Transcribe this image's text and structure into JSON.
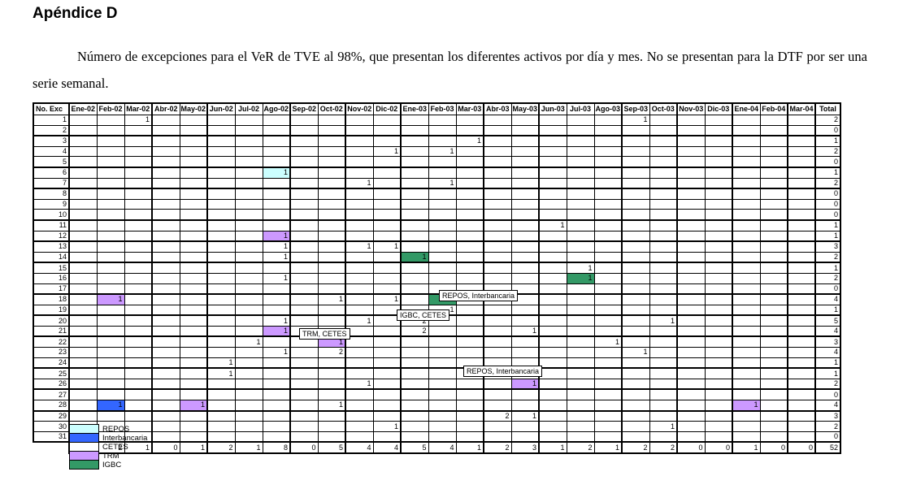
{
  "page": {
    "title": "Apéndice D",
    "paragraph": "Número de excepciones para el VeR de TVE al 98%, que presentan los diferentes activos por día y mes. No se presentan para la DTF por ser una serie semanal."
  },
  "legend": {
    "items": [
      {
        "label": "REPOS",
        "color": "#CCFFFF"
      },
      {
        "label": "Interbancaria",
        "color": "#3366FF"
      },
      {
        "label": "CETES",
        "color": "#FFFFFF"
      },
      {
        "label": "TRM",
        "color": "#CC99FF"
      },
      {
        "label": "IGBC",
        "color": "#339966"
      }
    ]
  },
  "chart_data": {
    "type": "table",
    "row_header_label": "No. Exc",
    "total_label": "Total",
    "columns": [
      "Ene-02",
      "Feb-02",
      "Mar-02",
      "Abr-02",
      "May-02",
      "Jun-02",
      "Jul-02",
      "Ago-02",
      "Sep-02",
      "Oct-02",
      "Nov-02",
      "Dic-02",
      "Ene-03",
      "Feb-03",
      "Mar-03",
      "Abr-03",
      "May-03",
      "Jun-03",
      "Jul-03",
      "Ago-03",
      "Sep-03",
      "Oct-03",
      "Nov-03",
      "Dic-03",
      "Ene-04",
      "Feb-04",
      "Mar-04"
    ],
    "rows": [
      {
        "label": "1",
        "cells": {
          "Mar-02": {
            "v": "1"
          },
          "Sep-03": {
            "v": "1"
          }
        },
        "total": "2"
      },
      {
        "label": "2",
        "cells": {},
        "total": "0"
      },
      {
        "label": "3",
        "cells": {
          "Mar-03": {
            "v": "1"
          }
        },
        "total": "1"
      },
      {
        "label": "4",
        "cells": {
          "Dic-02": {
            "v": "1"
          },
          "Feb-03": {
            "v": "1"
          }
        },
        "total": "2"
      },
      {
        "label": "5",
        "cells": {},
        "total": "0"
      },
      {
        "label": "6",
        "cells": {
          "Ago-02": {
            "v": "1",
            "asset": "REPOS"
          }
        },
        "total": "1"
      },
      {
        "label": "7",
        "cells": {
          "Nov-02": {
            "v": "1"
          },
          "Feb-03": {
            "v": "1"
          }
        },
        "total": "2"
      },
      {
        "label": "8",
        "cells": {},
        "total": "0"
      },
      {
        "label": "9",
        "cells": {},
        "total": "0"
      },
      {
        "label": "10",
        "cells": {},
        "total": "0"
      },
      {
        "label": "11",
        "cells": {
          "Jun-03": {
            "v": "1"
          }
        },
        "total": "1"
      },
      {
        "label": "12",
        "cells": {
          "Ago-02": {
            "v": "1",
            "asset": "TRM"
          }
        },
        "total": "1"
      },
      {
        "label": "13",
        "cells": {
          "Ago-02": {
            "v": "1"
          },
          "Nov-02": {
            "v": "1"
          },
          "Dic-02": {
            "v": "1"
          }
        },
        "total": "3"
      },
      {
        "label": "14",
        "cells": {
          "Ago-02": {
            "v": "1"
          },
          "Ene-03": {
            "v": "1",
            "asset": "IGBC"
          }
        },
        "total": "2"
      },
      {
        "label": "15",
        "cells": {
          "Jul-03": {
            "v": "1"
          }
        },
        "total": "1"
      },
      {
        "label": "16",
        "cells": {
          "Ago-02": {
            "v": "1"
          },
          "Jul-03": {
            "v": "1",
            "asset": "IGBC"
          }
        },
        "total": "2"
      },
      {
        "label": "17",
        "cells": {},
        "total": "0"
      },
      {
        "label": "18",
        "cells": {
          "Feb-02": {
            "v": "1",
            "asset": "TRM"
          },
          "Oct-02": {
            "v": "1"
          },
          "Dic-02": {
            "v": "1"
          },
          "Feb-03": {
            "v": "1",
            "asset": "IGBC"
          }
        },
        "total": "4"
      },
      {
        "label": "19",
        "cells": {
          "Feb-03": {
            "v": "1"
          }
        },
        "total": "1"
      },
      {
        "label": "20",
        "cells": {
          "Ago-02": {
            "v": "1"
          },
          "Nov-02": {
            "v": "1"
          },
          "Ene-03": {
            "v": "2"
          },
          "Oct-03": {
            "v": "1"
          }
        },
        "total": "5"
      },
      {
        "label": "21",
        "cells": {
          "Ago-02": {
            "v": "1",
            "asset": "TRM"
          },
          "Ene-03": {
            "v": "2"
          },
          "May-03": {
            "v": "1"
          }
        },
        "total": "4"
      },
      {
        "label": "22",
        "cells": {
          "Jul-02": {
            "v": "1"
          },
          "Oct-02": {
            "v": "1",
            "asset": "TRM"
          },
          "Ago-03": {
            "v": "1"
          }
        },
        "total": "3"
      },
      {
        "label": "23",
        "cells": {
          "Ago-02": {
            "v": "1"
          },
          "Oct-02": {
            "v": "2"
          },
          "Sep-03": {
            "v": "1"
          }
        },
        "total": "4"
      },
      {
        "label": "24",
        "cells": {
          "Jun-02": {
            "v": "1"
          }
        },
        "total": "1"
      },
      {
        "label": "25",
        "cells": {
          "Jun-02": {
            "v": "1"
          }
        },
        "total": "1"
      },
      {
        "label": "26",
        "cells": {
          "Nov-02": {
            "v": "1"
          },
          "May-03": {
            "v": "1",
            "asset": "TRM"
          }
        },
        "total": "2"
      },
      {
        "label": "27",
        "cells": {},
        "total": "0"
      },
      {
        "label": "28",
        "cells": {
          "Feb-02": {
            "v": "1",
            "asset": "Interbancaria"
          },
          "May-02": {
            "v": "1",
            "asset": "TRM"
          },
          "Oct-02": {
            "v": "1"
          },
          "Ene-04": {
            "v": "1",
            "asset": "TRM"
          }
        },
        "total": "4"
      },
      {
        "label": "29",
        "cells": {
          "Abr-03": {
            "v": "2"
          },
          "May-03": {
            "v": "1"
          }
        },
        "total": "3"
      },
      {
        "label": "30",
        "cells": {
          "Dic-02": {
            "v": "1"
          },
          "Oct-03": {
            "v": "1"
          }
        },
        "total": "2"
      },
      {
        "label": "31",
        "cells": {},
        "total": "0"
      }
    ],
    "column_totals": [
      "0",
      "2",
      "1",
      "0",
      "1",
      "2",
      "1",
      "8",
      "0",
      "5",
      "4",
      "4",
      "5",
      "4",
      "1",
      "2",
      "3",
      "1",
      "2",
      "1",
      "2",
      "2",
      "0",
      "0",
      "1",
      "0",
      "0"
    ],
    "grand_total": "52",
    "annotations": [
      {
        "row": 20,
        "start_col": "Feb-03",
        "text": "REPOS, Interbancaria"
      },
      {
        "row": 22,
        "start_col": "Ene-03",
        "text": "IGBC, CETES"
      },
      {
        "row": 24,
        "start_col": "Sep-02",
        "text": "TRM, CETES"
      },
      {
        "row": 28,
        "start_col": "Mar-03",
        "text": "REPOS, Interbancaria"
      }
    ]
  }
}
